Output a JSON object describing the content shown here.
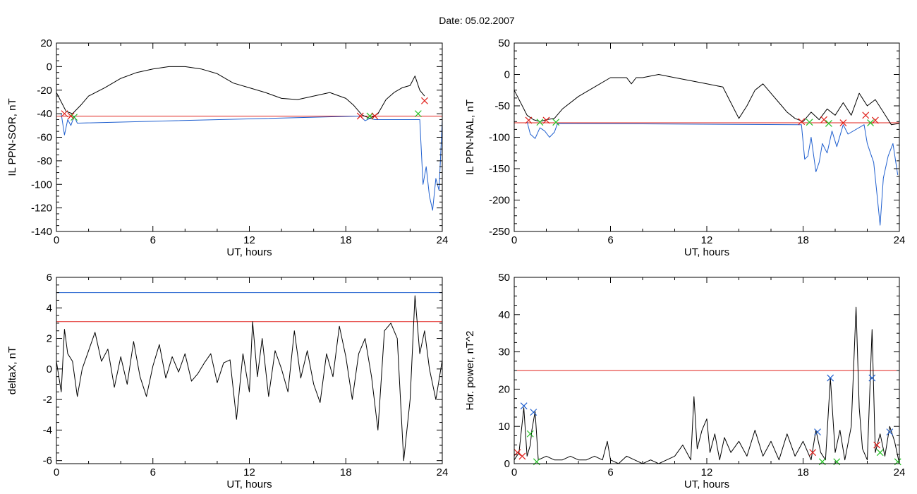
{
  "figure": {
    "title": "Date:  05.02.2007"
  },
  "chart_data": [
    {
      "id": "sor",
      "type": "line",
      "title": "",
      "xlabel": "UT, hours",
      "ylabel": "IL PPN-SOR, nT",
      "xlim": [
        0,
        24
      ],
      "ylim": [
        -140,
        20
      ],
      "xticks": [
        0,
        6,
        12,
        18,
        24
      ],
      "yticks": [
        -140,
        -120,
        -100,
        -80,
        -60,
        -40,
        -20,
        0,
        20
      ],
      "grid": false,
      "series": [
        {
          "role": "main",
          "color": "#000000",
          "x": [
            0,
            0.3,
            0.6,
            1.0,
            1.5,
            2.0,
            3.0,
            4.0,
            5.0,
            6.0,
            7.0,
            8.0,
            9.0,
            10.0,
            11.0,
            12.0,
            13.0,
            14.0,
            15.0,
            16.0,
            17.0,
            18.0,
            18.5,
            19.0,
            19.5,
            20.0,
            20.5,
            21.0,
            21.5,
            22.0,
            22.3,
            22.6,
            22.9
          ],
          "y": [
            -22,
            -30,
            -38,
            -40,
            -33,
            -25,
            -18,
            -10,
            -5,
            -2,
            0,
            0,
            -2,
            -6,
            -14,
            -18,
            -22,
            -27,
            -28,
            -25,
            -22,
            -27,
            -33,
            -41,
            -44,
            -40,
            -28,
            -22,
            -18,
            -16,
            -8,
            -20,
            -25
          ]
        },
        {
          "role": "disturbed",
          "color": "#1f5fcf",
          "x": [
            0.3,
            0.5,
            0.7,
            0.9,
            1.1,
            1.3,
            18.9,
            19.2,
            19.5,
            19.8,
            22.6,
            22.8,
            23.0,
            23.2,
            23.4,
            23.6,
            23.8,
            24.0
          ],
          "y": [
            -40,
            -58,
            -45,
            -50,
            -42,
            -48,
            -42,
            -46,
            -44,
            -45,
            -45,
            -100,
            -85,
            -110,
            -122,
            -95,
            -105,
            -45
          ]
        }
      ],
      "threshold_lines": [
        {
          "value": -42,
          "color": "#e0201b"
        }
      ],
      "markers": [
        {
          "x": 0.5,
          "y": -40,
          "symbol": "x",
          "color": "#e0201b"
        },
        {
          "x": 0.9,
          "y": -42,
          "symbol": "x",
          "color": "#e0201b"
        },
        {
          "x": 1.1,
          "y": -43,
          "symbol": "x",
          "color": "#22c022"
        },
        {
          "x": 18.9,
          "y": -42,
          "symbol": "x",
          "color": "#e0201b"
        },
        {
          "x": 19.5,
          "y": -42,
          "symbol": "x",
          "color": "#22c022"
        },
        {
          "x": 19.8,
          "y": -42,
          "symbol": "x",
          "color": "#e0201b"
        },
        {
          "x": 22.5,
          "y": -40,
          "symbol": "x",
          "color": "#22c022"
        },
        {
          "x": 22.9,
          "y": -29,
          "symbol": "x",
          "color": "#e0201b"
        }
      ]
    },
    {
      "id": "nal",
      "type": "line",
      "title": "",
      "xlabel": "UT, hours",
      "ylabel": "IL PPN-NAL, nT",
      "xlim": [
        0,
        24
      ],
      "ylim": [
        -250,
        50
      ],
      "xticks": [
        0,
        6,
        12,
        18,
        24
      ],
      "yticks": [
        -250,
        -200,
        -150,
        -100,
        -50,
        0,
        50
      ],
      "grid": false,
      "series": [
        {
          "role": "main",
          "color": "#000000",
          "x": [
            0,
            0.4,
            0.8,
            1.2,
            1.6,
            2.0,
            2.5,
            3.0,
            4.0,
            5.0,
            6.0,
            7.0,
            7.3,
            7.6,
            8.0,
            9.0,
            10.0,
            11.0,
            12.0,
            13.0,
            13.5,
            14.0,
            14.5,
            15.0,
            15.5,
            16.0,
            16.5,
            17.0,
            17.5,
            18.0,
            18.5,
            19.0,
            19.5,
            20.0,
            20.5,
            21.0,
            21.5,
            22.0,
            22.5,
            23.0,
            23.5,
            24.0
          ],
          "y": [
            -25,
            -45,
            -65,
            -72,
            -75,
            -72,
            -70,
            -55,
            -35,
            -20,
            -5,
            -5,
            -15,
            -5,
            -5,
            0,
            -5,
            -10,
            -15,
            -20,
            -45,
            -70,
            -50,
            -25,
            -15,
            -30,
            -45,
            -60,
            -70,
            -75,
            -60,
            -72,
            -55,
            -65,
            -45,
            -65,
            -30,
            -50,
            -40,
            -60,
            -80,
            -78
          ]
        },
        {
          "role": "disturbed",
          "color": "#1f5fcf",
          "x": [
            0.8,
            1.0,
            1.3,
            1.6,
            1.9,
            2.2,
            2.5,
            2.7,
            17.9,
            18.1,
            18.3,
            18.5,
            18.8,
            19.0,
            19.2,
            19.5,
            19.8,
            20.1,
            20.5,
            20.8,
            21.8,
            22.0,
            22.2,
            22.4,
            22.6,
            22.8,
            23.0,
            23.3,
            23.6,
            23.9
          ],
          "y": [
            -75,
            -95,
            -102,
            -85,
            -90,
            -100,
            -92,
            -78,
            -80,
            -135,
            -130,
            -100,
            -155,
            -140,
            -110,
            -125,
            -90,
            -115,
            -80,
            -95,
            -80,
            -110,
            -125,
            -140,
            -190,
            -240,
            -165,
            -130,
            -110,
            -160
          ]
        }
      ],
      "threshold_lines": [
        {
          "value": -77,
          "color": "#e0201b"
        }
      ],
      "markers": [
        {
          "x": 0.9,
          "y": -73,
          "symbol": "x",
          "color": "#e0201b"
        },
        {
          "x": 1.6,
          "y": -76,
          "symbol": "x",
          "color": "#22c022"
        },
        {
          "x": 2.0,
          "y": -73,
          "symbol": "x",
          "color": "#e0201b"
        },
        {
          "x": 2.6,
          "y": -76,
          "symbol": "x",
          "color": "#22c022"
        },
        {
          "x": 17.9,
          "y": -75,
          "symbol": "x",
          "color": "#e0201b"
        },
        {
          "x": 18.4,
          "y": -76,
          "symbol": "x",
          "color": "#22c022"
        },
        {
          "x": 19.3,
          "y": -72,
          "symbol": "x",
          "color": "#e0201b"
        },
        {
          "x": 19.6,
          "y": -78,
          "symbol": "x",
          "color": "#22c022"
        },
        {
          "x": 20.5,
          "y": -77,
          "symbol": "x",
          "color": "#e0201b"
        },
        {
          "x": 21.9,
          "y": -65,
          "symbol": "x",
          "color": "#e0201b"
        },
        {
          "x": 22.2,
          "y": -77,
          "symbol": "x",
          "color": "#22c022"
        },
        {
          "x": 22.5,
          "y": -73,
          "symbol": "x",
          "color": "#e0201b"
        }
      ]
    },
    {
      "id": "deltax",
      "type": "line",
      "title": "",
      "xlabel": "UT, hours",
      "ylabel": "deltaX, nT",
      "xlim": [
        0,
        24
      ],
      "ylim": [
        -6.2,
        6
      ],
      "xticks": [
        0,
        6,
        12,
        18,
        24
      ],
      "yticks": [
        -6,
        -4,
        -2,
        0,
        2,
        4,
        6
      ],
      "grid": false,
      "series": [
        {
          "role": "main",
          "color": "#000000",
          "x": [
            0,
            0.3,
            0.5,
            0.7,
            1.0,
            1.3,
            1.6,
            2.0,
            2.4,
            2.8,
            3.2,
            3.6,
            4.0,
            4.4,
            4.8,
            5.2,
            5.6,
            6.0,
            6.4,
            6.8,
            7.2,
            7.6,
            8.0,
            8.4,
            8.8,
            9.2,
            9.6,
            10.0,
            10.4,
            10.8,
            11.2,
            11.6,
            12.0,
            12.2,
            12.5,
            12.8,
            13.2,
            13.6,
            14.0,
            14.4,
            14.8,
            15.2,
            15.6,
            16.0,
            16.4,
            16.8,
            17.2,
            17.6,
            18.0,
            18.4,
            18.8,
            19.2,
            19.6,
            20.0,
            20.4,
            20.8,
            21.2,
            21.6,
            22.0,
            22.3,
            22.6,
            22.9,
            23.2,
            23.6,
            24.0
          ],
          "y": [
            0.5,
            -1.5,
            2.6,
            1.0,
            0.5,
            -1.8,
            0.0,
            1.2,
            2.4,
            0.5,
            1.3,
            -1.2,
            0.8,
            -1.0,
            1.8,
            -0.5,
            -1.8,
            0.2,
            1.6,
            -0.6,
            0.8,
            -0.2,
            1.0,
            -0.8,
            -0.3,
            0.4,
            1.0,
            -0.9,
            0.4,
            0.6,
            -3.3,
            1.0,
            -1.5,
            3.1,
            -0.5,
            2.0,
            -1.8,
            1.2,
            0.0,
            -1.5,
            2.5,
            -0.6,
            1.2,
            -1.0,
            -2.2,
            1.0,
            -0.5,
            2.8,
            0.8,
            -2.0,
            1.0,
            2.0,
            -0.5,
            -4.0,
            2.5,
            3.0,
            2.0,
            -6.0,
            -2.0,
            4.8,
            1.0,
            2.5,
            0.0,
            -2.0,
            0.6
          ]
        }
      ],
      "threshold_lines": [
        {
          "value": 5.0,
          "color": "#1f5fcf"
        },
        {
          "value": 3.1,
          "color": "#e0201b"
        }
      ],
      "markers": []
    },
    {
      "id": "power",
      "type": "line",
      "title": "",
      "xlabel": "UT, hours",
      "ylabel": "Hor. power, nT^2",
      "xlim": [
        0,
        24
      ],
      "ylim": [
        0,
        50
      ],
      "xticks": [
        0,
        6,
        12,
        18,
        24
      ],
      "yticks": [
        0,
        10,
        20,
        30,
        40,
        50
      ],
      "grid": false,
      "series": [
        {
          "role": "main",
          "color": "#000000",
          "x": [
            0,
            0.3,
            0.6,
            0.8,
            1.0,
            1.1,
            1.3,
            1.5,
            2.0,
            2.5,
            3.0,
            3.5,
            4.0,
            4.5,
            5.0,
            5.5,
            5.8,
            6.0,
            6.5,
            7.0,
            7.5,
            8.0,
            8.5,
            9.0,
            9.5,
            10.0,
            10.5,
            11.0,
            11.2,
            11.4,
            11.7,
            12.0,
            12.2,
            12.5,
            12.8,
            13.1,
            13.5,
            14.0,
            14.5,
            15.0,
            15.5,
            16.0,
            16.5,
            17.0,
            17.5,
            18.0,
            18.5,
            18.8,
            19.1,
            19.4,
            19.7,
            20.0,
            20.3,
            20.6,
            21.0,
            21.3,
            21.5,
            21.7,
            22.0,
            22.3,
            22.5,
            22.8,
            23.1,
            23.4,
            23.7,
            24.0
          ],
          "y": [
            1,
            3,
            15,
            2,
            5,
            9,
            14,
            1,
            2,
            1,
            1,
            2,
            1,
            1,
            2,
            1,
            6,
            1,
            0,
            2,
            1,
            0,
            1,
            0,
            1,
            2,
            5,
            1,
            18,
            4,
            9,
            12,
            3,
            8,
            1,
            7,
            3,
            6,
            2,
            9,
            2,
            6,
            1,
            8,
            2,
            6,
            1,
            9,
            3,
            1,
            23,
            3,
            9,
            1,
            10,
            42,
            15,
            4,
            1,
            36,
            3,
            8,
            2,
            10,
            6,
            0
          ]
        }
      ],
      "threshold_lines": [
        {
          "value": 25,
          "color": "#e0201b"
        }
      ],
      "markers": [
        {
          "x": 0.6,
          "y": 15.5,
          "symbol": "x",
          "color": "#1f5fcf"
        },
        {
          "x": 1.2,
          "y": 13.8,
          "symbol": "x",
          "color": "#1f5fcf"
        },
        {
          "x": 0.2,
          "y": 3,
          "symbol": "x",
          "color": "#e0201b"
        },
        {
          "x": 0.5,
          "y": 2,
          "symbol": "x",
          "color": "#e0201b"
        },
        {
          "x": 1.0,
          "y": 8,
          "symbol": "x",
          "color": "#22c022"
        },
        {
          "x": 1.4,
          "y": 0.5,
          "symbol": "x",
          "color": "#22c022"
        },
        {
          "x": 18.9,
          "y": 8.5,
          "symbol": "x",
          "color": "#1f5fcf"
        },
        {
          "x": 19.7,
          "y": 23,
          "symbol": "x",
          "color": "#1f5fcf"
        },
        {
          "x": 18.6,
          "y": 3,
          "symbol": "x",
          "color": "#e0201b"
        },
        {
          "x": 19.2,
          "y": 0.5,
          "symbol": "x",
          "color": "#22c022"
        },
        {
          "x": 20.1,
          "y": 0.5,
          "symbol": "x",
          "color": "#22c022"
        },
        {
          "x": 22.3,
          "y": 23,
          "symbol": "x",
          "color": "#1f5fcf"
        },
        {
          "x": 23.4,
          "y": 8.5,
          "symbol": "x",
          "color": "#1f5fcf"
        },
        {
          "x": 22.6,
          "y": 5,
          "symbol": "x",
          "color": "#e0201b"
        },
        {
          "x": 22.8,
          "y": 3,
          "symbol": "x",
          "color": "#22c022"
        },
        {
          "x": 23.9,
          "y": 0.5,
          "symbol": "x",
          "color": "#22c022"
        }
      ]
    }
  ]
}
